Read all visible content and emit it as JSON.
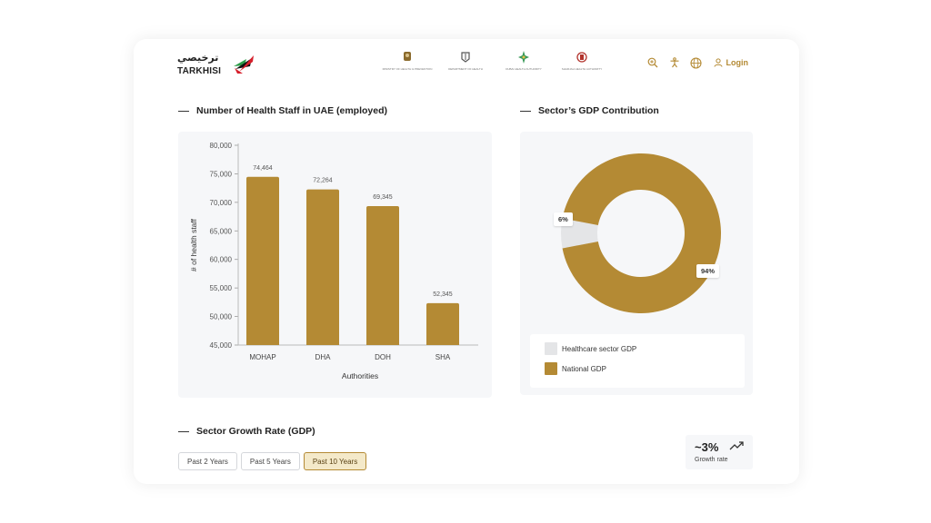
{
  "brand": {
    "name_ar": "ترخيصي",
    "name_en": "TARKHISI"
  },
  "partners": [
    {
      "name": "MINISTRY OF HEALTH & PREVENTION",
      "icon": "uae-emblem-icon"
    },
    {
      "name": "DEPARTMENT OF HEALTH",
      "icon": "abu-dhabi-emblem-icon"
    },
    {
      "name": "DUBAI HEALTH AUTHORITY",
      "icon": "dha-star-icon"
    },
    {
      "name": "SHARJAH HEALTH AUTHORITY",
      "icon": "sharjah-emblem-icon"
    }
  ],
  "header": {
    "login_label": "Login"
  },
  "sections": {
    "staff_title": "Number of Health Staff in UAE (employed)",
    "gdp_title": "Sector’s GDP Contribution",
    "growth_title": "Sector Growth Rate (GDP)"
  },
  "growth": {
    "tabs": [
      "Past 2 Years",
      "Past 5 Years",
      "Past 10 Years"
    ],
    "active_tab": 2,
    "value": "~3%",
    "label": "Growth rate"
  },
  "colors": {
    "accent": "#b48a34",
    "muted": "#e4e5e7"
  },
  "chart_data": [
    {
      "type": "bar",
      "title": "Number of Health Staff in UAE (employed)",
      "xlabel": "Authorities",
      "ylabel": "# of health staff",
      "categories": [
        "MOHAP",
        "DHA",
        "DOH",
        "SHA"
      ],
      "values": [
        74464,
        72264,
        69345,
        52345
      ],
      "value_labels": [
        "74,464",
        "72,264",
        "69,345",
        "52,345"
      ],
      "yticks": [
        "45,000",
        "50,000",
        "55,000",
        "60,000",
        "65,000",
        "70,000",
        "75,000",
        "80,000"
      ],
      "ylim": [
        45000,
        80000
      ],
      "color": "#b48a34"
    },
    {
      "type": "pie",
      "title": "Sector’s GDP Contribution",
      "donut": true,
      "slices": [
        {
          "name": "Healthcare sector GDP",
          "value": 6,
          "label": "6%",
          "color": "#e4e5e7"
        },
        {
          "name": "National GDP",
          "value": 94,
          "label": "94%",
          "color": "#b48a34"
        }
      ]
    }
  ]
}
